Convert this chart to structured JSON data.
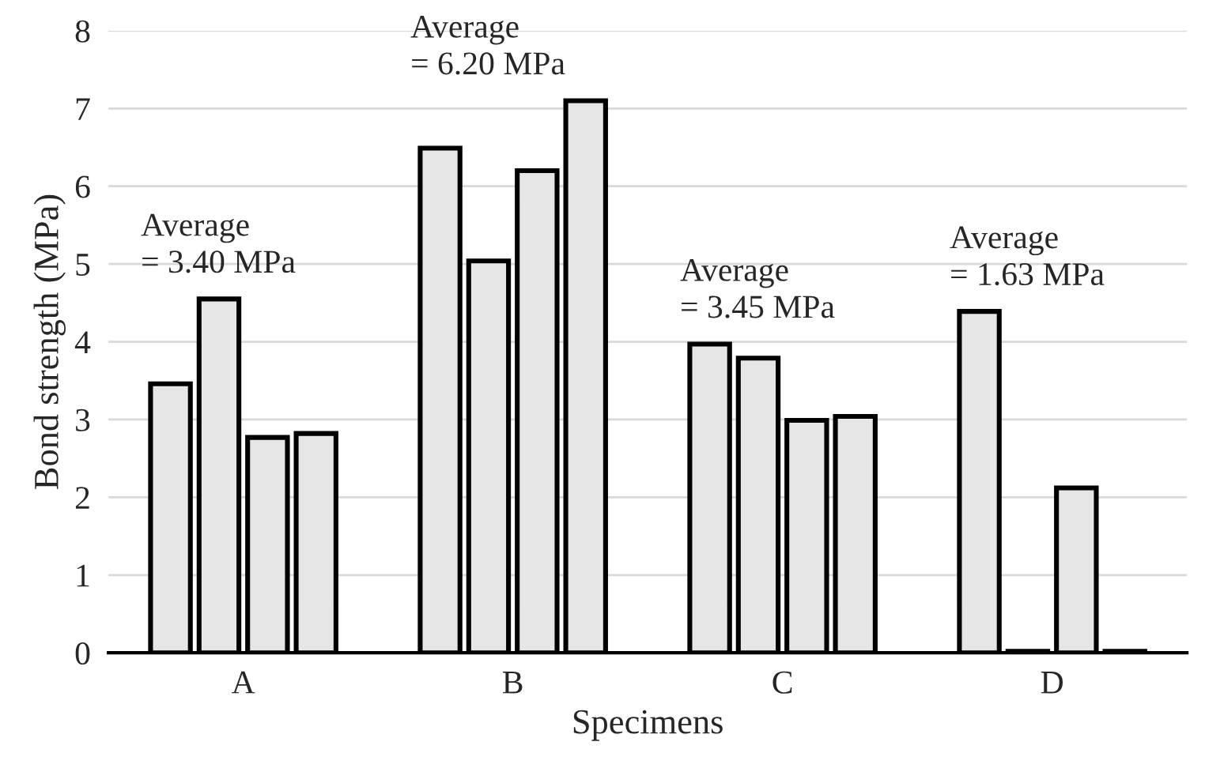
{
  "chart_data": {
    "type": "bar",
    "xlabel": "Specimens",
    "ylabel": "Bond strength (MPa)",
    "categories": [
      "A",
      "B",
      "C",
      "D"
    ],
    "series": [
      {
        "color": "#e7e6e6",
        "values": [
          3.46,
          6.49,
          3.97,
          4.39
        ]
      },
      {
        "color": "#e7e6e6",
        "values": [
          4.55,
          5.04,
          3.79,
          0.02
        ]
      },
      {
        "color": "#e7e6e6",
        "values": [
          2.77,
          6.2,
          2.99,
          2.12
        ]
      },
      {
        "color": "#e7e6e6",
        "values": [
          2.82,
          7.1,
          3.04,
          0.02
        ]
      }
    ],
    "ylim": [
      0,
      8
    ],
    "yticks": [
      0,
      1,
      2,
      3,
      4,
      5,
      6,
      7,
      8
    ],
    "grid": "y",
    "legend": false,
    "annotations": [
      "Average\n= 3.40 MPa",
      "Average\n= 6.20 MPa",
      "Average\n= 3.45 MPa",
      "Average\n= 1.63 MPa"
    ]
  }
}
